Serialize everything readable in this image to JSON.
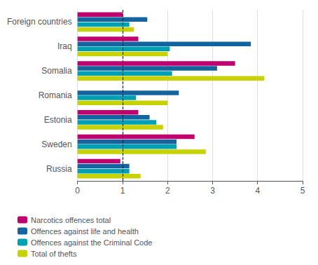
{
  "chart_data": {
    "type": "bar",
    "orientation": "horizontal",
    "categories": [
      "Foreign countries",
      "Iraq",
      "Somalia",
      "Romania",
      "Estonia",
      "Sweden",
      "Russia"
    ],
    "series": [
      {
        "name": "Narcotics offences total",
        "color": "#c0006e",
        "values": [
          1.0,
          1.35,
          3.5,
          null,
          1.35,
          2.6,
          0.95
        ]
      },
      {
        "name": "Offences against life and health",
        "color": "#1464a0",
        "values": [
          1.55,
          3.85,
          3.1,
          2.25,
          1.6,
          2.2,
          1.15
        ]
      },
      {
        "name": "Offences against the Criminal Code",
        "color": "#00a0b4",
        "values": [
          1.15,
          2.05,
          2.1,
          1.3,
          1.75,
          2.2,
          1.15
        ]
      },
      {
        "name": "Total of thefts",
        "color": "#c8d200",
        "values": [
          1.25,
          2.0,
          4.15,
          2.0,
          1.9,
          2.85,
          1.4
        ]
      }
    ],
    "xlim": [
      0,
      5
    ],
    "xticks": [
      0,
      1,
      2,
      3,
      4,
      5
    ],
    "reference_line": {
      "value": 1.0,
      "line_style": "dashed"
    },
    "grid": true,
    "legend": "bottom"
  }
}
